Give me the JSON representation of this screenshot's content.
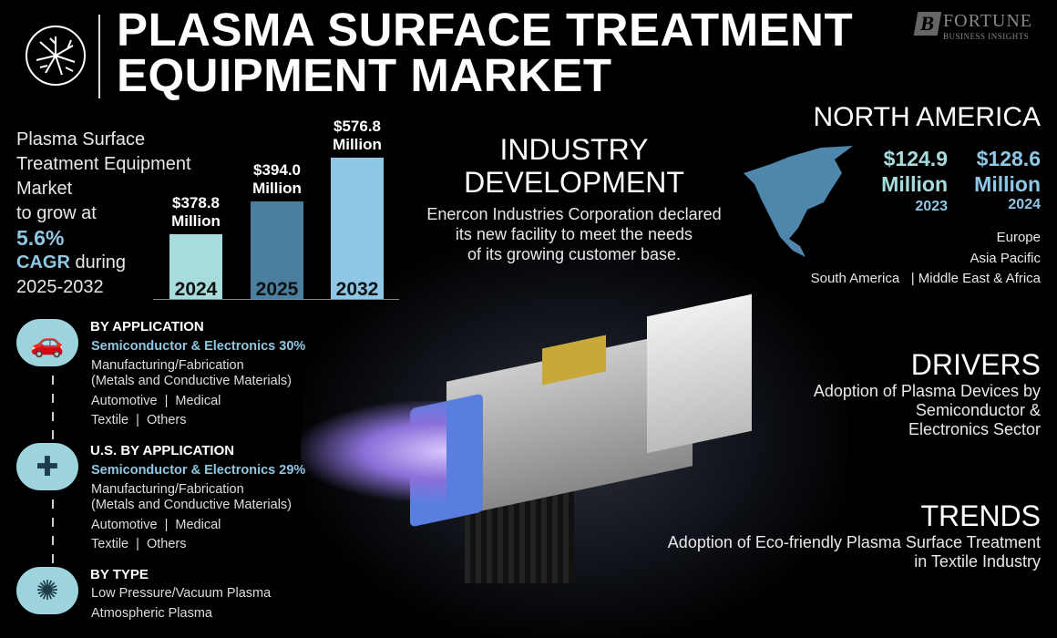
{
  "header": {
    "title_line1": "PLASMA SURFACE TREATMENT",
    "title_line2": "EQUIPMENT MARKET",
    "brand_name": "FORTUNE",
    "brand_sub": "BUSINESS INSIGHTS"
  },
  "intro": {
    "line1": "Plasma Surface",
    "line2": "Treatment Equipment",
    "line3": "Market",
    "line4": "to grow at",
    "cagr": "5.6%",
    "cagr_label": "CAGR",
    "during": " during",
    "period": "2025-2032"
  },
  "chart_data": {
    "type": "bar",
    "categories": [
      "2024",
      "2025",
      "2032"
    ],
    "values": [
      378.8,
      394.0,
      576.8
    ],
    "labels": [
      "$378.8 Million",
      "$394.0 Million",
      "$576.8 Million"
    ],
    "value_line1": [
      "$378.8",
      "$394.0",
      "$576.8"
    ],
    "value_line2": "Million",
    "colors": [
      "#a8dcdc",
      "#4a7fa0",
      "#8ec8e6"
    ]
  },
  "industry": {
    "title_line1": "INDUSTRY",
    "title_line2": "DEVELOPMENT",
    "line1": "Enercon Industries Corporation declared",
    "line2": "its new facility to meet the needs",
    "line3": "of its growing customer base."
  },
  "region": {
    "title": "NORTH AMERICA",
    "values": [
      {
        "amount": "$124.9",
        "unit": "Million",
        "year": "2023",
        "color": "#a8dcdc"
      },
      {
        "amount": "$128.6",
        "unit": "Million",
        "year": "2024",
        "color": "#8ec8e6"
      }
    ],
    "others": {
      "europe": "Europe",
      "apac": "Asia Pacific",
      "sa": "South America",
      "sep": "|",
      "mea": "Middle East & Africa"
    }
  },
  "segments": [
    {
      "heading": "BY APPLICATION",
      "icon": "car-icon",
      "lines": [
        "Semiconductor & Electronics 30%",
        "Manufacturing/Fabrication",
        "(Metals and Conductive Materials)",
        "Automotive  |  Medical",
        "Textile  |  Others"
      ]
    },
    {
      "heading": "U.S. BY APPLICATION",
      "icon": "medical-cross-icon",
      "lines": [
        "Semiconductor & Electronics 29%",
        "Manufacturing/Fabrication",
        "(Metals and Conductive Materials)",
        "Automotive  |  Medical",
        "Textile  |  Others"
      ]
    },
    {
      "heading": "BY TYPE",
      "icon": "plasma-icon",
      "lines": [
        "Low Pressure/Vacuum Plasma",
        "Atmospheric Plasma"
      ]
    }
  ],
  "drivers": {
    "title": "DRIVERS",
    "line1": "Adoption of Plasma Devices by",
    "line2": "Semiconductor &",
    "line3": "Electronics Sector"
  },
  "trends": {
    "title": "TRENDS",
    "line1": "Adoption of Eco-friendly Plasma Surface Treatment",
    "line2": "in Textile Industry"
  }
}
